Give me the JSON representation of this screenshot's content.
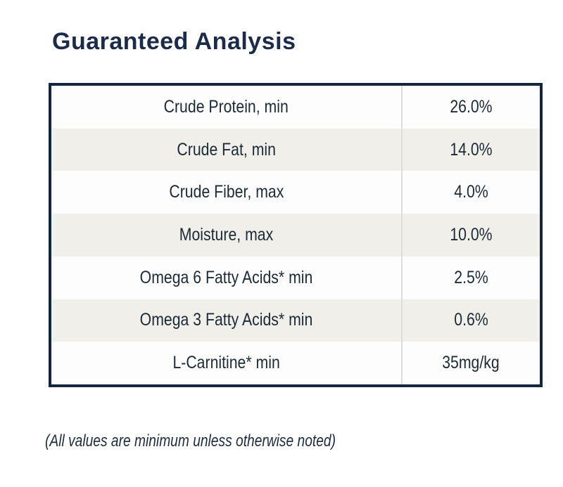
{
  "page": {
    "title": "Guaranteed Analysis",
    "footnote": "(All values are minimum unless otherwise noted)"
  },
  "table": {
    "rows": [
      {
        "label": "Crude Protein, min",
        "value": "26.0%"
      },
      {
        "label": "Crude Fat, min",
        "value": "14.0%"
      },
      {
        "label": "Crude Fiber, max",
        "value": "4.0%"
      },
      {
        "label": "Moisture, max",
        "value": "10.0%"
      },
      {
        "label": "Omega 6 Fatty Acids* min",
        "value": "2.5%"
      },
      {
        "label": "Omega 3 Fatty Acids* min",
        "value": "0.6%"
      },
      {
        "label": "L-Carnitine* min",
        "value": "35mg/kg"
      }
    ]
  },
  "colors": {
    "border_navy": "#13263f",
    "title_navy": "#1c2b49",
    "cell_text": "#1c2937",
    "row_white": "#fdfdfd",
    "row_beige": "#f0efea",
    "column_divider": "#dddddd"
  }
}
